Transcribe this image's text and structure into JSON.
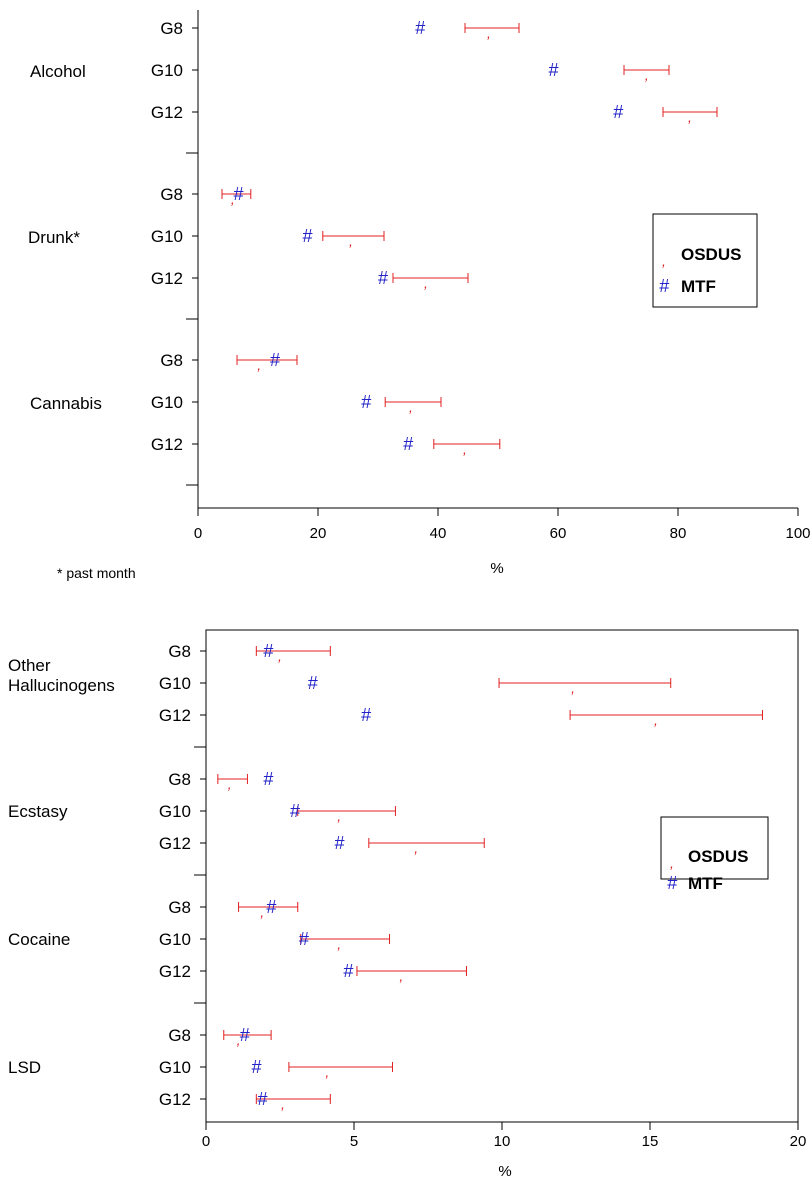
{
  "chart_data": [
    {
      "type": "scatter",
      "xlabel": "%",
      "xlim": [
        0,
        100
      ],
      "xticks": [
        "0",
        "20",
        "40",
        "60",
        "80",
        "100"
      ],
      "footnote": "* past month",
      "legend": {
        "placement": "right",
        "entries": [
          {
            "marker": ",",
            "label": "OSDUS",
            "color": "#e02020"
          },
          {
            "marker": "#",
            "label": "MTF",
            "color": "#2323c8"
          }
        ]
      },
      "groups": [
        {
          "name": "Alcohol",
          "rows": [
            {
              "grade": "G8",
              "mtf": 37.0,
              "osdus": 48.5,
              "ci": [
                44.5,
                53.5
              ]
            },
            {
              "grade": "G10",
              "mtf": 59.2,
              "osdus": 74.8,
              "ci": [
                71.0,
                78.5
              ]
            },
            {
              "grade": "G12",
              "mtf": 70.0,
              "osdus": 82.0,
              "ci": [
                77.5,
                86.5
              ]
            }
          ]
        },
        {
          "name": "Drunk*",
          "rows": [
            {
              "grade": "G8",
              "mtf": 6.7,
              "osdus": 5.8,
              "ci": [
                4.0,
                8.8
              ]
            },
            {
              "grade": "G10",
              "mtf": 18.2,
              "osdus": 25.5,
              "ci": [
                20.8,
                31.0
              ]
            },
            {
              "grade": "G12",
              "mtf": 30.8,
              "osdus": 38.0,
              "ci": [
                32.5,
                45.0
              ]
            }
          ]
        },
        {
          "name": "Cannabis",
          "rows": [
            {
              "grade": "G8",
              "mtf": 12.8,
              "osdus": 10.2,
              "ci": [
                6.5,
                16.5
              ]
            },
            {
              "grade": "G10",
              "mtf": 28.0,
              "osdus": 35.5,
              "ci": [
                31.2,
                40.5
              ]
            },
            {
              "grade": "G12",
              "mtf": 35.0,
              "osdus": 44.5,
              "ci": [
                39.3,
                50.3
              ]
            }
          ]
        }
      ]
    },
    {
      "type": "scatter",
      "xlabel": "%",
      "xlim": [
        0,
        20
      ],
      "xticks": [
        "0",
        "5",
        "10",
        "15",
        "20"
      ],
      "legend": {
        "placement": "right",
        "entries": [
          {
            "marker": ",",
            "label": "OSDUS",
            "color": "#e02020"
          },
          {
            "marker": "#",
            "label": "MTF",
            "color": "#2323c8"
          }
        ]
      },
      "groups": [
        {
          "name": "Other Hallucinogens",
          "label_lines": [
            "Other",
            "Hallucinogens"
          ],
          "rows": [
            {
              "grade": "G8",
              "mtf": 2.1,
              "osdus": 2.5,
              "ci": [
                1.7,
                4.2
              ]
            },
            {
              "grade": "G10",
              "mtf": 3.6,
              "osdus": 12.4,
              "ci": [
                9.9,
                15.7
              ]
            },
            {
              "grade": "G12",
              "mtf": 5.4,
              "osdus": 15.2,
              "ci": [
                12.3,
                18.8
              ]
            }
          ]
        },
        {
          "name": "Ecstasy",
          "label_lines": [
            "Ecstasy"
          ],
          "rows": [
            {
              "grade": "G8",
              "mtf": 2.1,
              "osdus": 0.8,
              "ci": [
                0.4,
                1.4
              ]
            },
            {
              "grade": "G10",
              "mtf": 3.0,
              "osdus": 4.5,
              "ci": [
                3.1,
                6.4
              ]
            },
            {
              "grade": "G12",
              "mtf": 4.5,
              "osdus": 7.1,
              "ci": [
                5.5,
                9.4
              ]
            }
          ]
        },
        {
          "name": "Cocaine",
          "label_lines": [
            "Cocaine"
          ],
          "rows": [
            {
              "grade": "G8",
              "mtf": 2.2,
              "osdus": 1.9,
              "ci": [
                1.1,
                3.1
              ]
            },
            {
              "grade": "G10",
              "mtf": 3.3,
              "osdus": 4.5,
              "ci": [
                3.2,
                6.2
              ]
            },
            {
              "grade": "G12",
              "mtf": 4.8,
              "osdus": 6.6,
              "ci": [
                5.1,
                8.8
              ]
            }
          ]
        },
        {
          "name": "LSD",
          "label_lines": [
            "LSD"
          ],
          "rows": [
            {
              "grade": "G8",
              "mtf": 1.3,
              "osdus": 1.1,
              "ci": [
                0.6,
                2.2
              ]
            },
            {
              "grade": "G10",
              "mtf": 1.7,
              "osdus": 4.1,
              "ci": [
                2.8,
                6.3
              ]
            },
            {
              "grade": "G12",
              "mtf": 1.9,
              "osdus": 2.6,
              "ci": [
                1.7,
                4.2
              ]
            }
          ]
        }
      ]
    }
  ]
}
